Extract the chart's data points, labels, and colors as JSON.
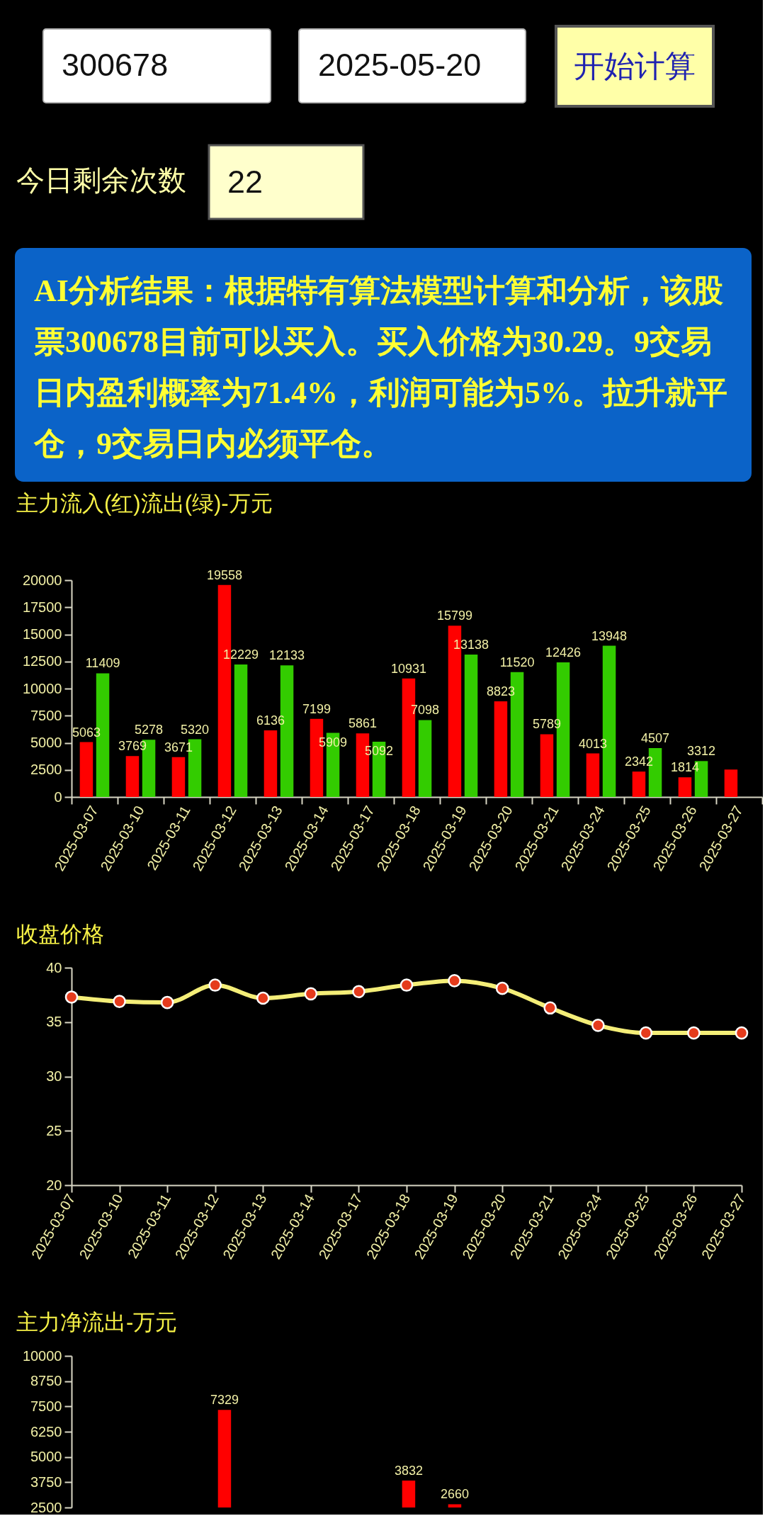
{
  "chart_data": [
    {
      "type": "other",
      "annotations": [
        "300678",
        "2025-05-20",
        "开始计算",
        "今日剩余次数",
        "22",
        "AI分析结果：根据特有算法模型计算和分析，该股票300678目前可以买入。买入价格为30.29。9交易日内盈利概率为71.4%，利润可能为5%。拉升就平仓，9交易日内必须平仓。"
      ]
    },
    {
      "type": "bar",
      "title": "主力流入(红)流出(绿)-万元",
      "categories": [
        "2025-03-07",
        "2025-03-10",
        "2025-03-11",
        "2025-03-12",
        "2025-03-13",
        "2025-03-14",
        "2025-03-17",
        "2025-03-18",
        "2025-03-19",
        "2025-03-20",
        "2025-03-21",
        "2025-03-24",
        "2025-03-25",
        "2025-03-26",
        "2025-03-27"
      ],
      "series": [
        {
          "color": "#ff0000",
          "values": [
            5063,
            3769,
            3671,
            19558,
            6136,
            7199,
            5861,
            10931,
            15799,
            8823,
            5789,
            4013,
            2342,
            1814,
            2530
          ],
          "value_labels": [
            "5063",
            "3769",
            "3671",
            "19558",
            "6136",
            "7199",
            "5861",
            "10931",
            "15799",
            "8823",
            "5789",
            "4013",
            "2342",
            "1814",
            null
          ]
        },
        {
          "color": "#33cc00",
          "values": [
            11409,
            5278,
            5320,
            12229,
            12133,
            5909,
            5092,
            7098,
            13138,
            11520,
            12426,
            13948,
            4507,
            3312,
            null
          ],
          "value_labels": [
            "11409",
            "5278",
            "5320",
            "12229",
            "12133",
            "5909",
            "5092",
            "7098",
            "13138",
            "11520",
            "12426",
            "13948",
            "4507",
            "3312",
            null
          ]
        }
      ],
      "ylim": [
        0,
        20000
      ],
      "yticks": [
        0,
        2500,
        5000,
        7500,
        10000,
        12500,
        15000,
        17500,
        20000
      ]
    },
    {
      "type": "line",
      "title": "收盘价格",
      "categories": [
        "2025-03-07",
        "2025-03-10",
        "2025-03-11",
        "2025-03-12",
        "2025-03-13",
        "2025-03-14",
        "2025-03-17",
        "2025-03-18",
        "2025-03-19",
        "2025-03-20",
        "2025-03-21",
        "2025-03-24",
        "2025-03-25",
        "2025-03-26",
        "2025-03-27"
      ],
      "series": [
        {
          "color": "#f4ee78",
          "colors": [
            "#e53b1c",
            "#e53b1c",
            "#e53b1c",
            "#e53b1c",
            "#e53b1c",
            "#e53b1c",
            "#e53b1c",
            "#e53b1c",
            "#e53b1c",
            "#e53b1c",
            "#e53b1c",
            "#e53b1c",
            "#e53b1c",
            "#e53b1c",
            "#e53b1c"
          ],
          "values": [
            37.3,
            36.9,
            36.8,
            38.4,
            37.2,
            37.6,
            37.8,
            38.4,
            38.8,
            38.1,
            36.3,
            34.7,
            34.0,
            34.0,
            34.0
          ]
        }
      ],
      "ylim": [
        20,
        40
      ],
      "yticks": [
        20,
        25,
        30,
        35,
        40
      ],
      "marker": "circle"
    },
    {
      "type": "bar",
      "title": "主力净流出-万元",
      "categories": [
        null,
        null,
        null,
        null,
        null,
        null,
        null,
        null,
        null,
        null,
        null,
        null,
        null,
        null,
        null
      ],
      "series": [
        {
          "color": "#ff0000",
          "values": [
            null,
            null,
            null,
            7329,
            null,
            null,
            null,
            3832,
            2660,
            null,
            null,
            null,
            null,
            null,
            null
          ]
        }
      ],
      "ylim": [
        2500,
        10000
      ],
      "yticks": [
        2500,
        3750,
        5000,
        6250,
        7500,
        8750,
        10000
      ],
      "data_labels": true,
      "tick_labels": "y"
    }
  ]
}
